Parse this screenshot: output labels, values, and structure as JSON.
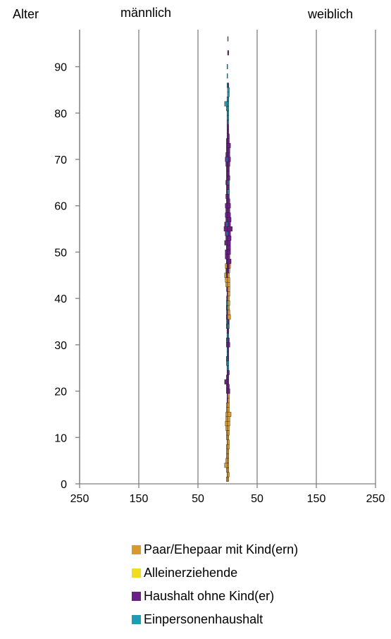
{
  "chart_data": {
    "type": "bar",
    "subtype": "population-pyramid",
    "age_axis_label": "Alter",
    "left_side_label": "männlich",
    "right_side_label": "weiblich",
    "age_ticks": [
      0,
      10,
      20,
      30,
      40,
      50,
      60,
      70,
      80,
      90
    ],
    "age_range": [
      0,
      98
    ],
    "x_range": [
      -250,
      250
    ],
    "x_gridlines": [
      -250,
      -150,
      -50,
      50,
      150,
      250
    ],
    "x_tick_labels": [
      "250",
      "150",
      "50",
      "50",
      "150",
      "250"
    ],
    "grid": true,
    "legend_position": "bottom",
    "series": [
      {
        "name": "Paar/Ehepaar mit Kind(ern)",
        "color": "#d89a2b"
      },
      {
        "name": "Alleinerziehende",
        "color": "#f0dc20"
      },
      {
        "name": "Haushalt ohne Kind(er)",
        "color": "#6a1f86"
      },
      {
        "name": "Einpersonenhaushalt",
        "color": "#1f9bb2"
      }
    ],
    "bars": [
      [
        1,
        -2,
        0,
        2,
        0,
        0,
        0,
        0,
        0
      ],
      [
        2,
        -1,
        0,
        3,
        0,
        0,
        0,
        0,
        0
      ],
      [
        3,
        -2,
        0,
        2,
        0,
        0,
        0,
        0,
        0
      ],
      [
        4,
        -5,
        0,
        2,
        0,
        0,
        0,
        0,
        0
      ],
      [
        5,
        -3,
        0,
        2,
        0,
        0,
        0,
        0,
        0
      ],
      [
        6,
        -2,
        0,
        2,
        0,
        0,
        0,
        0,
        0
      ],
      [
        7,
        -2,
        0,
        2,
        0,
        0,
        0,
        0,
        0
      ],
      [
        8,
        -2,
        0,
        3,
        0,
        0,
        0,
        0,
        0
      ],
      [
        9,
        -1,
        0,
        3,
        0,
        0,
        0,
        0,
        0
      ],
      [
        10,
        -2,
        0,
        2,
        0,
        0,
        0,
        0,
        0
      ],
      [
        11,
        -2,
        0,
        3,
        0,
        0,
        0,
        0,
        0
      ],
      [
        12,
        -3,
        0,
        3,
        0,
        0,
        0,
        0,
        0
      ],
      [
        13,
        -4,
        0,
        4,
        0,
        0,
        0,
        0,
        0
      ],
      [
        14,
        -3,
        0,
        4,
        0,
        0,
        0,
        0,
        0
      ],
      [
        15,
        -3,
        0,
        6,
        0,
        0,
        0,
        0,
        0
      ],
      [
        16,
        -2,
        0,
        3,
        0,
        0,
        0,
        0,
        0
      ],
      [
        17,
        -2,
        0,
        3,
        0,
        0,
        0,
        0,
        0
      ],
      [
        18,
        -1,
        0,
        3,
        0,
        0,
        -1,
        0,
        0
      ],
      [
        19,
        0,
        0,
        3,
        0,
        0,
        -1,
        0,
        0
      ],
      [
        20,
        0,
        0,
        0,
        0,
        0,
        -2,
        4,
        0
      ],
      [
        21,
        0,
        0,
        0,
        0,
        0,
        -2,
        3,
        0
      ],
      [
        22,
        0,
        0,
        0,
        0,
        0,
        -5,
        2,
        0
      ],
      [
        23,
        0,
        0,
        0,
        0,
        0,
        -2,
        2,
        0
      ],
      [
        24,
        0,
        0,
        0,
        0,
        0,
        -1,
        3,
        0
      ],
      [
        25,
        0,
        0,
        0,
        0,
        0,
        -1,
        0,
        -1,
        2
      ],
      [
        26,
        0,
        0,
        0,
        0,
        0,
        0,
        0,
        -2,
        2
      ],
      [
        27,
        0,
        0,
        0,
        0,
        0,
        -2,
        2,
        -1,
        0
      ],
      [
        28,
        0,
        0,
        0,
        0,
        0,
        -1,
        2,
        -1,
        0
      ],
      [
        29,
        0,
        0,
        0,
        0,
        0,
        -1,
        2,
        -1,
        0
      ],
      [
        30,
        0,
        0,
        0,
        0,
        0,
        -2,
        4,
        0,
        0
      ],
      [
        31,
        0,
        0,
        0,
        0,
        0,
        -2,
        3,
        -1,
        0
      ],
      [
        32,
        0,
        0,
        0,
        0,
        0,
        -1,
        2,
        -1,
        2
      ],
      [
        33,
        -1,
        0,
        2,
        0,
        0,
        -1,
        2,
        0,
        0
      ],
      [
        34,
        -1,
        0,
        3,
        0,
        0,
        -2,
        0,
        -1,
        2
      ],
      [
        35,
        -2,
        0,
        3,
        0,
        0,
        -1,
        2,
        -1,
        0
      ],
      [
        36,
        -2,
        0,
        5,
        0,
        0,
        -2,
        0,
        0,
        0
      ],
      [
        37,
        -2,
        0,
        4,
        0,
        0,
        -1,
        0,
        0,
        0
      ],
      [
        38,
        -2,
        0,
        3,
        0,
        0,
        -2,
        0,
        -1,
        0
      ],
      [
        39,
        -2,
        0,
        4,
        0,
        0,
        -1,
        0,
        -2,
        0
      ],
      [
        40,
        -2,
        0,
        3,
        0,
        0,
        -1,
        0,
        0,
        0
      ],
      [
        41,
        -1,
        0,
        4,
        0,
        0,
        -1,
        0,
        0,
        0
      ],
      [
        42,
        -2,
        0,
        4,
        0,
        0,
        -1,
        0,
        0,
        0
      ],
      [
        43,
        -3,
        0,
        4,
        0,
        0,
        0,
        0,
        0,
        0
      ],
      [
        44,
        -4,
        0,
        4,
        0,
        0,
        0,
        0,
        0,
        0
      ],
      [
        45,
        -5,
        0,
        3,
        0,
        0,
        -2,
        0,
        0,
        0
      ],
      [
        46,
        -3,
        0,
        4,
        0,
        0,
        -2,
        2,
        0,
        0
      ],
      [
        47,
        -4,
        0,
        5,
        0,
        0,
        -1,
        3,
        0,
        0
      ],
      [
        48,
        -2,
        0,
        3,
        0,
        0,
        -2,
        6,
        0,
        0
      ],
      [
        49,
        -3,
        0,
        4,
        0,
        0,
        -4,
        3,
        0,
        0
      ],
      [
        50,
        -2,
        0,
        3,
        0,
        0,
        -4,
        5,
        0,
        0
      ],
      [
        51,
        -2,
        0,
        4,
        0,
        0,
        -2,
        5,
        0,
        0
      ],
      [
        52,
        -2,
        0,
        4,
        0,
        0,
        -5,
        5,
        0,
        0
      ],
      [
        53,
        -2,
        0,
        3,
        0,
        0,
        -3,
        6,
        0,
        0
      ],
      [
        54,
        -2,
        0,
        3,
        0,
        0,
        -4,
        5,
        -2,
        0
      ],
      [
        55,
        -1,
        0,
        3,
        0,
        0,
        -6,
        8,
        0,
        0
      ],
      [
        56,
        -1,
        0,
        2,
        0,
        0,
        -5,
        5,
        -2,
        0
      ],
      [
        57,
        -1,
        0,
        2,
        0,
        0,
        -3,
        6,
        0,
        0
      ],
      [
        58,
        0,
        0,
        0,
        0,
        0,
        -4,
        5,
        0,
        0
      ],
      [
        59,
        0,
        0,
        0,
        0,
        0,
        -3,
        4,
        0,
        0
      ],
      [
        60,
        0,
        0,
        0,
        0,
        0,
        -4,
        5,
        0,
        0
      ],
      [
        61,
        0,
        0,
        0,
        0,
        0,
        -2,
        4,
        0,
        0
      ],
      [
        62,
        0,
        0,
        0,
        0,
        0,
        -3,
        3,
        0,
        0
      ],
      [
        63,
        0,
        0,
        0,
        0,
        0,
        -2,
        3,
        0,
        3
      ],
      [
        64,
        0,
        0,
        0,
        0,
        0,
        -2,
        3,
        0,
        0
      ],
      [
        65,
        0,
        0,
        0,
        0,
        0,
        -3,
        3,
        0,
        2
      ],
      [
        66,
        0,
        0,
        0,
        0,
        0,
        -2,
        4,
        0,
        0
      ],
      [
        67,
        0,
        0,
        0,
        0,
        0,
        -2,
        3,
        0,
        0
      ],
      [
        68,
        0,
        0,
        0,
        0,
        0,
        -2,
        3,
        0,
        0
      ],
      [
        69,
        0,
        0,
        0,
        0,
        0,
        -3,
        4,
        0,
        0
      ],
      [
        70,
        0,
        0,
        0,
        0,
        0,
        -4,
        5,
        -2,
        0
      ],
      [
        71,
        0,
        0,
        0,
        0,
        0,
        -3,
        4,
        0,
        0
      ],
      [
        72,
        0,
        0,
        0,
        0,
        0,
        -2,
        4,
        0,
        0
      ],
      [
        73,
        0,
        0,
        0,
        0,
        0,
        -2,
        5,
        0,
        0
      ],
      [
        74,
        0,
        0,
        0,
        0,
        0,
        -2,
        3,
        0,
        0
      ],
      [
        75,
        0,
        0,
        0,
        0,
        0,
        -1,
        3,
        0,
        0
      ],
      [
        76,
        0,
        0,
        0,
        0,
        0,
        -1,
        2,
        0,
        0
      ],
      [
        77,
        0,
        0,
        0,
        0,
        0,
        -1,
        2,
        0,
        0
      ],
      [
        78,
        0,
        0,
        0,
        0,
        0,
        -1,
        0,
        0,
        2
      ],
      [
        79,
        0,
        0,
        0,
        0,
        0,
        0,
        0,
        -1,
        2
      ],
      [
        80,
        0,
        0,
        0,
        0,
        0,
        0,
        0,
        -1,
        2
      ],
      [
        81,
        0,
        0,
        0,
        0,
        0,
        0,
        0,
        -2,
        2
      ],
      [
        82,
        0,
        0,
        0,
        0,
        0,
        0,
        0,
        -5,
        2
      ],
      [
        83,
        0,
        0,
        0,
        0,
        0,
        0,
        2,
        -1,
        2
      ],
      [
        84,
        0,
        0,
        0,
        0,
        0,
        0,
        2,
        0,
        3
      ],
      [
        85,
        0,
        0,
        0,
        0,
        0,
        0,
        2,
        0,
        3
      ],
      [
        86,
        0,
        0,
        0,
        0,
        0,
        0,
        2,
        -1,
        0
      ],
      [
        88,
        0,
        0,
        0,
        0,
        0,
        0,
        0,
        -1,
        0
      ],
      [
        90,
        0,
        0,
        0,
        0,
        0,
        0,
        0,
        -1,
        0
      ],
      [
        93,
        0,
        0,
        0,
        0,
        0,
        0,
        2,
        0,
        0
      ],
      [
        96,
        0,
        0,
        0,
        0,
        0,
        0,
        0,
        0,
        1
      ]
    ]
  }
}
